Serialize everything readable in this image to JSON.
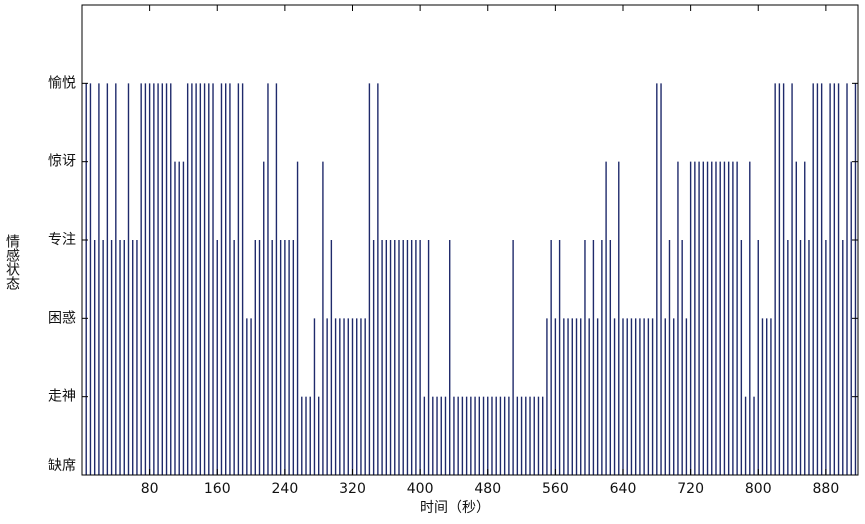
{
  "chart_data": {
    "type": "stem",
    "xlabel": "时间（秒）",
    "ylabel": "情感状态",
    "color": "#1f2a6b",
    "xlim": [
      0,
      918
    ],
    "ylim": [
      0,
      6
    ],
    "xticks": [
      80,
      160,
      240,
      320,
      400,
      480,
      560,
      640,
      720,
      800,
      880
    ],
    "yticks": [
      {
        "value": 0,
        "label": "缺席"
      },
      {
        "value": 1,
        "label": "走神"
      },
      {
        "value": 2,
        "label": "困惑"
      },
      {
        "value": 3,
        "label": "专注"
      },
      {
        "value": 4,
        "label": "惊讶"
      },
      {
        "value": 5,
        "label": "愉悦"
      }
    ],
    "x": [
      5,
      10,
      15,
      20,
      25,
      30,
      35,
      40,
      45,
      50,
      55,
      60,
      65,
      70,
      75,
      80,
      85,
      90,
      95,
      100,
      105,
      110,
      115,
      120,
      125,
      130,
      135,
      140,
      145,
      150,
      155,
      160,
      165,
      170,
      175,
      180,
      185,
      190,
      195,
      200,
      205,
      210,
      215,
      220,
      225,
      230,
      235,
      240,
      245,
      250,
      255,
      260,
      265,
      270,
      275,
      280,
      285,
      290,
      295,
      300,
      305,
      310,
      315,
      320,
      325,
      330,
      335,
      340,
      345,
      350,
      355,
      360,
      365,
      370,
      375,
      380,
      385,
      390,
      395,
      400,
      405,
      410,
      415,
      420,
      425,
      430,
      435,
      440,
      445,
      450,
      455,
      460,
      465,
      470,
      475,
      480,
      485,
      490,
      495,
      500,
      505,
      510,
      515,
      520,
      525,
      530,
      535,
      540,
      545,
      550,
      555,
      560,
      565,
      570,
      575,
      580,
      585,
      590,
      595,
      600,
      605,
      610,
      615,
      620,
      625,
      630,
      635,
      640,
      645,
      650,
      655,
      660,
      665,
      670,
      675,
      680,
      685,
      690,
      695,
      700,
      705,
      710,
      715,
      720,
      725,
      730,
      735,
      740,
      745,
      750,
      755,
      760,
      765,
      770,
      775,
      780,
      785,
      790,
      795,
      800,
      805,
      810,
      815,
      820,
      825,
      830,
      835,
      840,
      845,
      850,
      855,
      860,
      865,
      870,
      875,
      880,
      885,
      890,
      895,
      900,
      905,
      910,
      915
    ],
    "values": [
      5,
      5,
      3,
      5,
      3,
      5,
      3,
      5,
      3,
      3,
      5,
      3,
      3,
      5,
      5,
      5,
      5,
      5,
      5,
      5,
      5,
      4,
      4,
      4,
      5,
      5,
      5,
      5,
      5,
      5,
      5,
      3,
      5,
      5,
      5,
      3,
      5,
      5,
      2,
      2,
      3,
      3,
      4,
      5,
      3,
      5,
      3,
      3,
      3,
      3,
      4,
      1,
      1,
      1,
      2,
      1,
      4,
      2,
      3,
      2,
      2,
      2,
      2,
      2,
      2,
      2,
      2,
      5,
      3,
      5,
      3,
      3,
      3,
      3,
      3,
      3,
      3,
      3,
      3,
      3,
      1,
      3,
      1,
      1,
      1,
      1,
      3,
      1,
      1,
      1,
      1,
      1,
      1,
      1,
      1,
      1,
      1,
      1,
      1,
      1,
      1,
      3,
      1,
      1,
      1,
      1,
      1,
      1,
      1,
      2,
      3,
      2,
      3,
      2,
      2,
      2,
      2,
      2,
      3,
      2,
      3,
      2,
      3,
      4,
      3,
      2,
      4,
      2,
      2,
      2,
      2,
      2,
      2,
      2,
      2,
      5,
      5,
      2,
      3,
      2,
      4,
      3,
      2,
      4,
      4,
      4,
      4,
      4,
      4,
      4,
      4,
      4,
      4,
      4,
      4,
      3,
      1,
      4,
      1,
      3,
      2,
      2,
      2,
      5,
      5,
      5,
      3,
      5,
      4,
      3,
      4,
      3,
      5,
      5,
      5,
      3,
      5,
      5,
      5,
      3,
      5,
      4,
      5
    ]
  }
}
